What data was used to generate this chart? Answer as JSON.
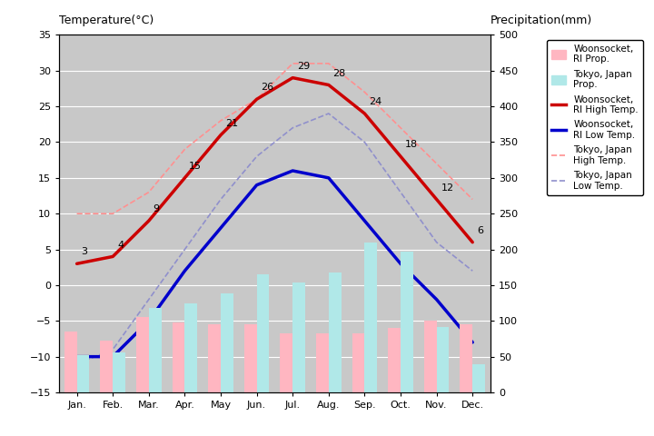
{
  "months": [
    "Jan.",
    "Feb.",
    "Mar.",
    "Apr.",
    "May",
    "Jun.",
    "Jul.",
    "Aug.",
    "Sep.",
    "Oct.",
    "Nov.",
    "Dec."
  ],
  "woonsocket_high": [
    3,
    4,
    9,
    15,
    21,
    26,
    29,
    28,
    24,
    18,
    12,
    6
  ],
  "woonsocket_low": [
    -10,
    -10,
    -5,
    2,
    8,
    14,
    16,
    15,
    9,
    3,
    -2,
    -8
  ],
  "tokyo_high": [
    10,
    10,
    13,
    19,
    23,
    26,
    31,
    31,
    27,
    22,
    17,
    12
  ],
  "tokyo_low": [
    -11,
    -9,
    -2,
    5,
    12,
    18,
    22,
    24,
    20,
    13,
    6,
    2
  ],
  "woonsocket_precip_mm": [
    85,
    73,
    105,
    98,
    95,
    95,
    82,
    83,
    82,
    90,
    100,
    95
  ],
  "tokyo_precip_mm": [
    52,
    56,
    118,
    125,
    138,
    165,
    154,
    168,
    210,
    197,
    92,
    40
  ],
  "bg_color": "#c8c8c8",
  "title_left": "Temperature(°C)",
  "title_right": "Precipitation(mm)",
  "ylim_temp": [
    -15,
    35
  ],
  "ylim_precip": [
    0,
    500
  ],
  "grid_color": "#ffffff",
  "woonsocket_bar_color": "#ffb6c1",
  "tokyo_bar_color": "#b0e8e8",
  "woonsocket_high_color": "#cc0000",
  "woonsocket_low_color": "#0000cc",
  "tokyo_high_color": "#ff9090",
  "tokyo_low_color": "#9090cc",
  "fig_bg": "#ffffff"
}
